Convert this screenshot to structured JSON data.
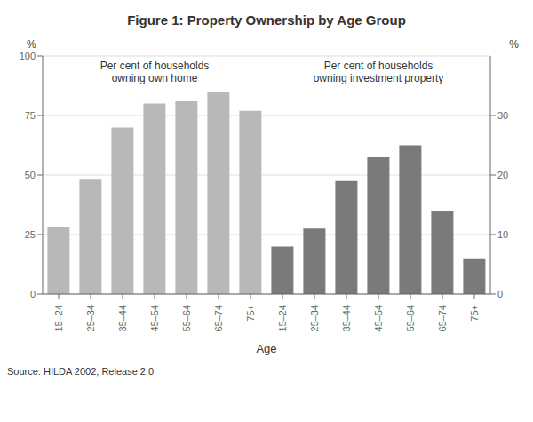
{
  "title": "Figure 1: Property Ownership by Age Group",
  "xlabel": "Age",
  "annotations": [
    "Source: HILDA 2002, Release 2.0"
  ],
  "chart_data": [
    {
      "type": "bar",
      "title": "Per cent of households\nowning own home",
      "ylabel": "%",
      "categories": [
        "15–24",
        "25–34",
        "35–44",
        "45–54",
        "55–64",
        "65–74",
        "75+"
      ],
      "values": [
        28,
        48,
        70,
        80,
        81,
        85,
        77
      ],
      "color": "#b8b8b8",
      "ylim": [
        0,
        100
      ],
      "yticks": [
        0,
        25,
        50,
        75,
        100
      ],
      "grid": true
    },
    {
      "type": "bar",
      "title": "Per cent of households\nowning investment property",
      "ylabel": "%",
      "categories": [
        "15–24",
        "25–34",
        "35–44",
        "45–54",
        "55–64",
        "65–74",
        "75+"
      ],
      "values": [
        8,
        11,
        19,
        23,
        25,
        14,
        6
      ],
      "color": "#7a7a7a",
      "ylim": [
        0,
        40
      ],
      "yticks": [
        0,
        10,
        20,
        30
      ],
      "grid": true
    }
  ]
}
